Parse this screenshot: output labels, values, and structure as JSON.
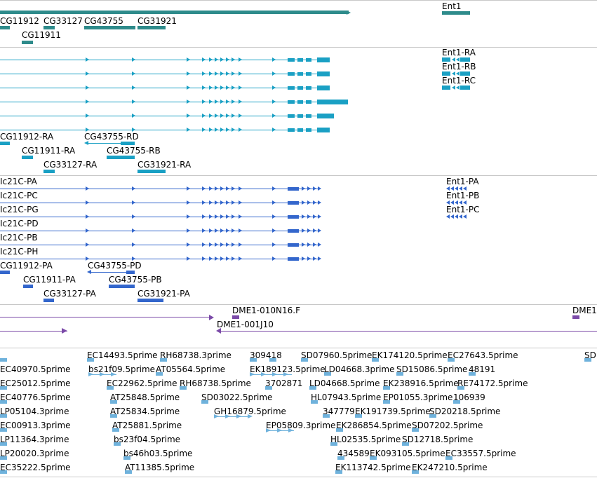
{
  "colors": {
    "genes": "#2e8b8b",
    "transcripts": "#1aa0c4",
    "proteins": "#3366cc",
    "clones": "#7b4aa8",
    "ests": "#6fb2dc",
    "separator": "#c8c8c8"
  },
  "tracks": {
    "genes": {
      "labels": [
        "Ent1",
        "CG11912",
        "CG33127",
        "CG43755",
        "CG31921",
        "CG11911"
      ]
    },
    "transcripts": {
      "labels": [
        "Ent1-RA",
        "Ent1-RB",
        "Ent1-RC",
        "CG11912-RA",
        "CG43755-RD",
        "CG11911-RA",
        "CG43755-RB",
        "CG33127-RA",
        "CG31921-RA"
      ]
    },
    "proteins": {
      "labels": [
        "Ic21C-PA",
        "Ic21C-PC",
        "Ic21C-PG",
        "Ic21C-PD",
        "Ic21C-PB",
        "Ic21C-PH",
        "Ent1-PA",
        "Ent1-PB",
        "Ent1-PC",
        "CG11912-PA",
        "CG43755-PD",
        "CG11911-PA",
        "CG43755-PB",
        "CG33127-PA",
        "CG31921-PA"
      ]
    },
    "clones": {
      "labels": [
        "DME1-010N16.F",
        "DME1",
        "DME1-001J10"
      ]
    },
    "ests": {
      "labels": [
        "EC14493.5prime",
        "RH68738.3prime",
        "309418",
        "SD07960.5prime",
        "EK174120.5prime",
        "EC27643.5prime",
        "SD",
        "EC40970.5prime",
        "bs21f09.5prime",
        "AT05564.5prime",
        "EK189123.5prime",
        "LD04668.3prime",
        "SD15086.5prime",
        "48191",
        "EC25012.5prime",
        "EC22962.5prime",
        "RH68738.5prime",
        "3702871",
        "LD04668.5prime",
        "EK238916.5prime",
        "RE74172.5prime",
        "EC40776.5prime",
        "AT25848.5prime",
        "SD03022.5prime",
        "HL07943.5prime",
        "EP01055.3prime",
        "106939",
        "LP05104.3prime",
        "AT25834.5prime",
        "GH16879.5prime",
        "347779",
        "EK191739.5prime",
        "SD20218.5prime",
        "EC00913.3prime",
        "AT25881.5prime",
        "EP05809.3prime",
        "EK286854.5prime",
        "SD07202.5prime",
        "LP11364.3prime",
        "bs23f04.5prime",
        "HL02535.5prime",
        "SD12718.5prime",
        "LP20020.3prime",
        "bs46h03.5prime",
        "434589",
        "EK093105.5prime",
        "EC33557.5prime",
        "EC35222.5prime",
        "AT11385.5prime",
        "EK113742.5prime",
        "EK247210.5prime"
      ]
    }
  }
}
